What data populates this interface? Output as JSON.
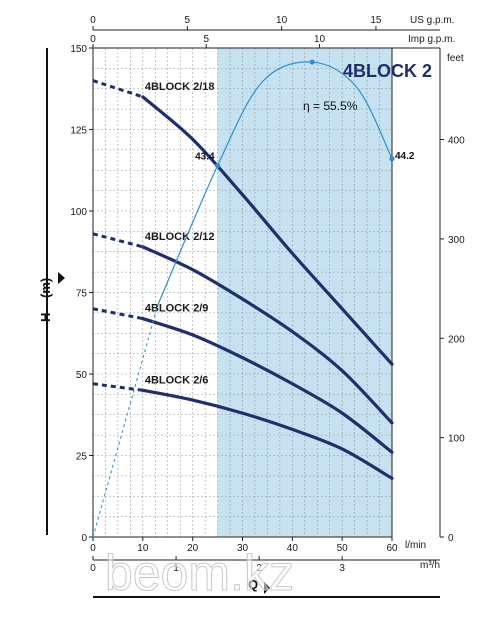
{
  "chart_data": {
    "type": "line",
    "title": "4BLOCK 2",
    "watermark": "beom.kz",
    "colors": {
      "curve": "#1f2f6e",
      "efficiency": "#2b8fd0",
      "shaded": "#c6e2f0",
      "grid": "#9a9a9a"
    },
    "axes": {
      "left": {
        "label": "H",
        "unit": "(m)",
        "ylim": [
          0,
          150
        ],
        "ticks": [
          "0",
          "25",
          "50",
          "75",
          "100",
          "125",
          "150"
        ]
      },
      "right": {
        "unit": "feet",
        "ticks": [
          "0",
          "100",
          "200",
          "300",
          "400"
        ]
      },
      "bottom": {
        "unit": "l/min",
        "xlim": [
          0,
          60
        ],
        "ticks": [
          "0",
          "10",
          "20",
          "30",
          "40",
          "50",
          "60"
        ]
      },
      "bottom2": {
        "unit": "m³/h",
        "ticks": [
          "0",
          "1",
          "2",
          "3"
        ]
      },
      "top": {
        "unit": "US g.p.m.",
        "ticks": [
          "0",
          "5",
          "10",
          "15"
        ]
      },
      "top2": {
        "unit": "Imp g.p.m.",
        "ticks": [
          "0",
          "5",
          "10"
        ]
      },
      "xlabel": "Q"
    },
    "grid": true,
    "shaded_region": [
      25,
      60
    ],
    "series": [
      {
        "name": "4BLOCK 2/18",
        "x": [
          10,
          20,
          30,
          40,
          50,
          60
        ],
        "values": [
          135,
          122,
          105,
          87,
          70,
          53
        ],
        "dashed_x": [
          0,
          10
        ],
        "dashed_values": [
          140,
          135
        ]
      },
      {
        "name": "4BLOCK 2/12",
        "x": [
          10,
          20,
          30,
          40,
          50,
          60
        ],
        "values": [
          89,
          82,
          73,
          63,
          51,
          35
        ],
        "dashed_x": [
          0,
          10
        ],
        "dashed_values": [
          93,
          89
        ]
      },
      {
        "name": "4BLOCK 2/9",
        "x": [
          10,
          20,
          30,
          40,
          50,
          60
        ],
        "values": [
          67,
          62,
          55,
          47,
          38,
          26
        ],
        "dashed_x": [
          0,
          10
        ],
        "dashed_values": [
          70,
          67
        ]
      },
      {
        "name": "4BLOCK 2/6",
        "x": [
          10,
          20,
          30,
          40,
          50,
          60
        ],
        "values": [
          45,
          42,
          38,
          33,
          27,
          18
        ],
        "dashed_x": [
          0,
          10
        ],
        "dashed_values": [
          47,
          45
        ]
      }
    ],
    "efficiency": {
      "label": "η = 55.5%",
      "points": [
        {
          "x": 25,
          "y": 43.4,
          "label": "43.4"
        },
        {
          "x": 44,
          "y": 55.5,
          "label": ""
        },
        {
          "x": 60,
          "y": 44.2,
          "label": "44.2"
        }
      ],
      "dashed_start": [
        0,
        0
      ]
    }
  }
}
